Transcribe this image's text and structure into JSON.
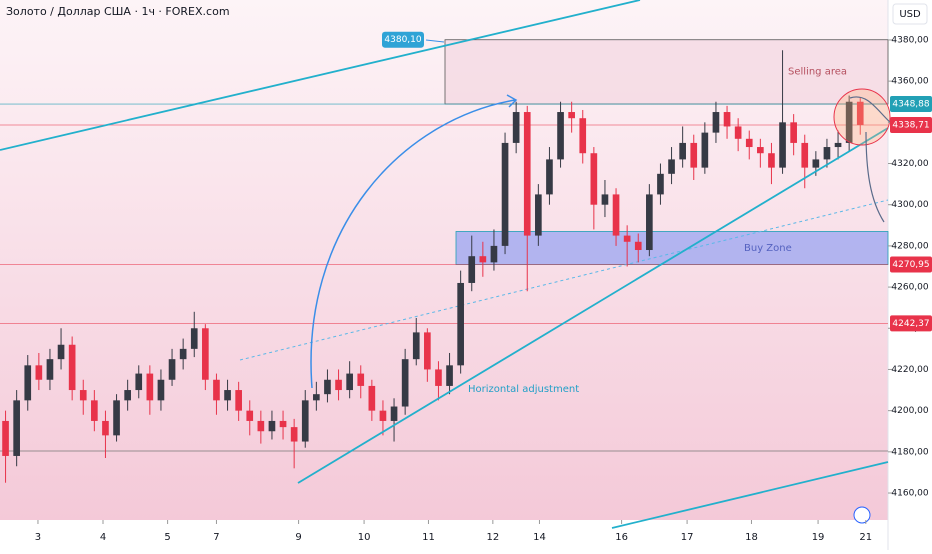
{
  "chart_data": {
    "type": "candlestick",
    "title": "Золото / Доллар США · 1ч · FOREX.com",
    "currency": "USD",
    "up_color": "#363a45",
    "down_color": "#e8334a",
    "xlim": [
      -0.5,
      79.5
    ],
    "xticks": [
      {
        "value": 2.92,
        "label": "3"
      },
      {
        "value": 8.78,
        "label": "4"
      },
      {
        "value": 14.6,
        "label": "5"
      },
      {
        "value": 19.0,
        "label": "7"
      },
      {
        "value": 26.4,
        "label": "9"
      },
      {
        "value": 32.3,
        "label": "10"
      },
      {
        "value": 38.1,
        "label": "11"
      },
      {
        "value": 43.9,
        "label": "12"
      },
      {
        "value": 48.1,
        "label": "14"
      },
      {
        "value": 55.5,
        "label": "16"
      },
      {
        "value": 61.4,
        "label": "17"
      },
      {
        "value": 67.2,
        "label": "18"
      },
      {
        "value": 73.2,
        "label": "19"
      },
      {
        "value": 77.5,
        "label": "21"
      }
    ],
    "ylim": [
      4146.9,
      4399.4
    ],
    "yticks": [
      {
        "value": 4160,
        "label": "4160,00"
      },
      {
        "value": 4180,
        "label": "4180,00"
      },
      {
        "value": 4200,
        "label": "4200,00"
      },
      {
        "value": 4220,
        "label": "4220,00"
      },
      {
        "value": 4240,
        "label": "4240,00"
      },
      {
        "value": 4260,
        "label": "4260,00"
      },
      {
        "value": 4280,
        "label": "4280,00"
      },
      {
        "value": 4300,
        "label": "4300,00"
      },
      {
        "value": 4320,
        "label": "4320,00"
      },
      {
        "value": 4340,
        "label": "4340,00"
      },
      {
        "value": 4360,
        "label": "4360,00"
      },
      {
        "value": 4380,
        "label": "4380,00"
      }
    ],
    "open": [
      4195,
      4178,
      4205,
      4222,
      4215,
      4225,
      4232,
      4210,
      4205,
      4195,
      4188,
      4205,
      4210,
      4218,
      4205,
      4215,
      4225,
      4230,
      4240,
      4215,
      4205,
      4210,
      4200,
      4195,
      4190,
      4195,
      4192,
      4185,
      4205,
      4208,
      4215,
      4210,
      4218,
      4212,
      4200,
      4195,
      4202,
      4225,
      4238,
      4220,
      4212,
      4222,
      4262,
      4275,
      4272,
      4280,
      4330,
      4345,
      4285,
      4305,
      4322,
      4345,
      4342,
      4325,
      4300,
      4305,
      4285,
      4282,
      4278,
      4305,
      4315,
      4322,
      4330,
      4318,
      4335,
      4345,
      4338,
      4332,
      4328,
      4325,
      4318,
      4340,
      4330,
      4318,
      4322,
      4328,
      4330,
      4350
    ],
    "high": [
      4200,
      4210,
      4227,
      4228,
      4230,
      4240,
      4236,
      4215,
      4210,
      4200,
      4208,
      4215,
      4222,
      4222,
      4220,
      4230,
      4235,
      4248,
      4242,
      4218,
      4215,
      4214,
      4205,
      4200,
      4200,
      4200,
      4196,
      4210,
      4214,
      4220,
      4220,
      4224,
      4222,
      4215,
      4205,
      4206,
      4230,
      4245,
      4240,
      4224,
      4228,
      4268,
      4285,
      4282,
      4288,
      4335,
      4350,
      4348,
      4310,
      4328,
      4350,
      4350,
      4346,
      4328,
      4312,
      4308,
      4290,
      4286,
      4310,
      4320,
      4328,
      4338,
      4334,
      4340,
      4350,
      4348,
      4342,
      4336,
      4332,
      4330,
      4375,
      4344,
      4334,
      4326,
      4332,
      4336,
      4353,
      4352
    ],
    "low": [
      4165,
      4173,
      4200,
      4210,
      4210,
      4220,
      4205,
      4198,
      4190,
      4177,
      4185,
      4200,
      4206,
      4198,
      4200,
      4212,
      4220,
      4226,
      4210,
      4198,
      4200,
      4195,
      4188,
      4184,
      4186,
      4186,
      4172,
      4182,
      4200,
      4204,
      4205,
      4206,
      4206,
      4195,
      4188,
      4185,
      4198,
      4222,
      4214,
      4205,
      4208,
      4218,
      4258,
      4265,
      4268,
      4276,
      4325,
      4258,
      4280,
      4300,
      4318,
      4335,
      4320,
      4288,
      4294,
      4280,
      4270,
      4272,
      4275,
      4300,
      4310,
      4318,
      4312,
      4315,
      4330,
      4332,
      4326,
      4322,
      4318,
      4310,
      4315,
      4324,
      4308,
      4314,
      4318,
      4322,
      4326,
      4334
    ],
    "close": [
      4178,
      4205,
      4222,
      4215,
      4225,
      4232,
      4210,
      4205,
      4195,
      4188,
      4205,
      4210,
      4218,
      4205,
      4215,
      4225,
      4230,
      4240,
      4215,
      4205,
      4210,
      4200,
      4195,
      4190,
      4195,
      4192,
      4185,
      4205,
      4208,
      4215,
      4210,
      4218,
      4212,
      4200,
      4195,
      4202,
      4225,
      4238,
      4220,
      4212,
      4222,
      4262,
      4275,
      4272,
      4280,
      4330,
      4345,
      4285,
      4305,
      4322,
      4345,
      4342,
      4325,
      4300,
      4305,
      4285,
      4282,
      4278,
      4305,
      4315,
      4322,
      4330,
      4318,
      4335,
      4345,
      4338,
      4332,
      4328,
      4325,
      4318,
      4340,
      4330,
      4318,
      4322,
      4328,
      4330,
      4350,
      4338.71
    ],
    "levels": [
      {
        "price": {
          "value": 4348.88,
          "label": "4348,88"
        },
        "color": "#22a0b5"
      },
      {
        "price": {
          "value": 4338.71,
          "label": "4338,71"
        },
        "color": "#e8334a"
      },
      {
        "price": {
          "value": 4270.95,
          "label": "4270,95"
        },
        "color": "#e8334a"
      },
      {
        "price": {
          "value": 4242.37,
          "label": "4242,37"
        },
        "color": "#e8334a"
      }
    ],
    "zones": [
      {
        "name": "Selling area",
        "top": {
          "value": 4380.1,
          "label": "4380,10"
        },
        "bottom": 4348.88,
        "fill": "#f5dbe4",
        "stroke": "#555555"
      },
      {
        "name": "Buy Zone",
        "top": 4287,
        "bottom": 4270.95,
        "fill": "#9aa5f2",
        "stroke": "#22a0b5"
      }
    ],
    "annotations": [
      "Horizontal adjustment"
    ]
  }
}
